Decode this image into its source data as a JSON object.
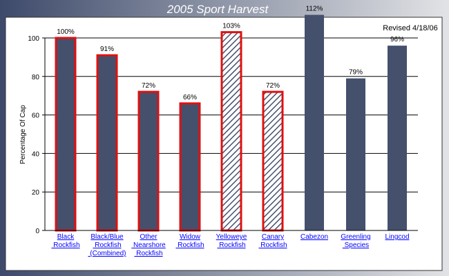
{
  "chart_data": {
    "type": "bar",
    "title": "2005 Sport Harvest",
    "y_label": "Percentage Of Cap",
    "annotation": "Revised 4/18/06",
    "categories": [
      "Black Rockfish",
      "Black/Blue Rockfish (Combined)",
      "Other Nearshore Rockfish",
      "Widow Rockfish",
      "Yelloweye Rockfish",
      "Canary Rockfish",
      "Cabezon",
      "Greenling Species",
      "Lingcod"
    ],
    "values": [
      100,
      91,
      72,
      66,
      103,
      72,
      112,
      79,
      96
    ],
    "value_labels": [
      "100%",
      "91%",
      "72%",
      "66%",
      "103%",
      "72%",
      "112%",
      "79%",
      "96%"
    ],
    "color": "#44506c",
    "outline_color": "#e01010",
    "outlined": [
      true,
      true,
      true,
      true,
      true,
      true,
      false,
      false,
      false
    ],
    "hatched": [
      false,
      false,
      false,
      false,
      true,
      true,
      false,
      false,
      false
    ],
    "ylim": [
      0,
      100
    ],
    "yticks": [
      0,
      20,
      40,
      60,
      80,
      100
    ],
    "grid": true
  }
}
